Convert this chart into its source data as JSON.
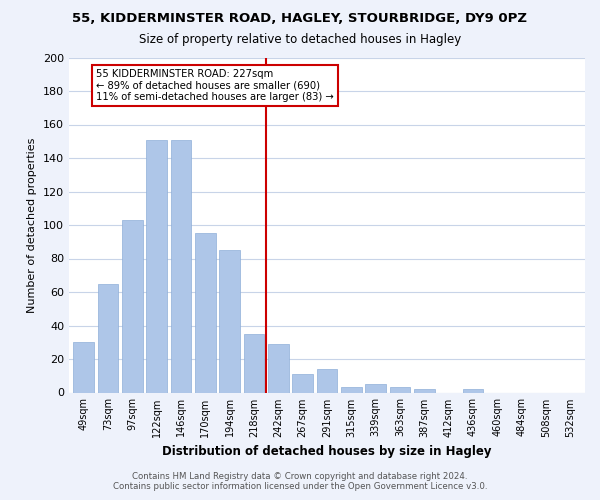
{
  "title": "55, KIDDERMINSTER ROAD, HAGLEY, STOURBRIDGE, DY9 0PZ",
  "subtitle": "Size of property relative to detached houses in Hagley",
  "xlabel": "Distribution of detached houses by size in Hagley",
  "ylabel": "Number of detached properties",
  "bar_labels": [
    "49sqm",
    "73sqm",
    "97sqm",
    "122sqm",
    "146sqm",
    "170sqm",
    "194sqm",
    "218sqm",
    "242sqm",
    "267sqm",
    "291sqm",
    "315sqm",
    "339sqm",
    "363sqm",
    "387sqm",
    "412sqm",
    "436sqm",
    "460sqm",
    "484sqm",
    "508sqm",
    "532sqm"
  ],
  "bar_heights": [
    30,
    65,
    103,
    151,
    151,
    95,
    85,
    35,
    29,
    11,
    14,
    3,
    5,
    3,
    2,
    0,
    2,
    0,
    0,
    0,
    0
  ],
  "bar_color": "#aec6e8",
  "vline_x": 7.5,
  "vline_color": "#cc0000",
  "annotation_title": "55 KIDDERMINSTER ROAD: 227sqm",
  "annotation_line1": "← 89% of detached houses are smaller (690)",
  "annotation_line2": "11% of semi-detached houses are larger (83) →",
  "annotation_box_color": "#ffffff",
  "annotation_box_edge": "#cc0000",
  "ylim": [
    0,
    200
  ],
  "yticks": [
    0,
    20,
    40,
    60,
    80,
    100,
    120,
    140,
    160,
    180,
    200
  ],
  "footer_line1": "Contains HM Land Registry data © Crown copyright and database right 2024.",
  "footer_line2": "Contains public sector information licensed under the Open Government Licence v3.0.",
  "bg_color": "#eef2fb",
  "plot_bg_color": "#ffffff",
  "grid_color": "#c8d4e8"
}
